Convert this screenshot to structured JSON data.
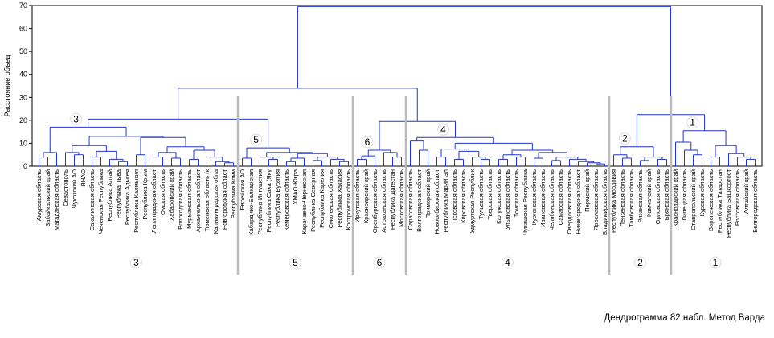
{
  "chart_data": {
    "type": "dendrogram",
    "y_label": "Расстояние объед",
    "caption": "Дендрограмма 82 набл. Метод Варда",
    "color": "#2236c8",
    "ylim": [
      0,
      70
    ],
    "yticks": [
      0,
      10,
      20,
      30,
      40,
      50,
      60,
      70
    ],
    "tree": {
      "height": 69.5,
      "children": [
        {
          "height": 34,
          "children": [
            {
              "height": 20.5,
              "children": [
                {
                  "label": "3",
                  "height": 17,
                  "children": [
                    {
                      "height": 6,
                      "children": [
                        {
                          "height": 4,
                          "children": [
                            "Амурская область",
                            "Забайкальский край"
                          ]
                        },
                        "Магаданская область"
                      ]
                    },
                    {
                      "height": 13,
                      "children": [
                        {
                          "height": 9,
                          "children": [
                            {
                              "height": 6,
                              "children": [
                                "Севастополь",
                                {
                                  "height": 5,
                                  "children": [
                                    "Чукотский АО",
                                    "ЯНАО"
                                  ]
                                }
                              ]
                            },
                            {
                              "height": 6.5,
                              "children": [
                                {
                                  "height": 4,
                                  "children": [
                                    "Сахалинская область",
                                    "Чеченская Республика"
                                  ]
                                },
                                {
                                  "height": 3,
                                  "children": [
                                    "Республика Алтай",
                                    {
                                      "height": 2,
                                      "children": [
                                        "Республика Тыва",
                                        "Республика Адыгея"
                                      ]
                                    }
                                  ]
                                }
                              ]
                            }
                          ]
                        },
                        {
                          "height": 12.5,
                          "children": [
                            {
                              "height": 5,
                              "children": [
                                "Республика Калмыкия",
                                "Республика Крым"
                              ]
                            },
                            {
                              "height": 8.5,
                              "children": [
                                {
                                  "height": 6,
                                  "children": [
                                    {
                                      "height": 4,
                                      "children": [
                                        "Ленинградская област",
                                        "Омская область"
                                      ]
                                    },
                                    {
                                      "height": 3.5,
                                      "children": [
                                        "Хабаровский край",
                                        "Вологодская область"
                                      ]
                                    }
                                  ]
                                },
                                {
                                  "height": 7,
                                  "children": [
                                    {
                                      "height": 3,
                                      "children": [
                                        "Мурманская область",
                                        "Архангельская област"
                                      ]
                                    },
                                    {
                                      "height": 4,
                                      "children": [
                                        "Тюменская область (к",
                                        {
                                          "height": 2,
                                          "children": [
                                            "Калининградская обла",
                                            {
                                              "height": 1.5,
                                              "children": [
                                                "Новгородская област",
                                                "Республика Коми"
                                              ]
                                            }
                                          ]
                                        }
                                      ]
                                    }
                                  ]
                                }
                              ]
                            }
                          ]
                        }
                      ]
                    }
                  ]
                },
                {
                  "label": "5",
                  "height": 8,
                  "children": [
                    {
                      "height": 3.5,
                      "children": [
                        "Еврейская АО",
                        "Кабардино-Балкарская"
                      ]
                    },
                    {
                      "height": 6,
                      "children": [
                        {
                          "height": 4,
                          "children": [
                            "Республика Ингушетия",
                            {
                              "height": 3,
                              "children": [
                                "Республика Саха (Яку",
                                "Республика Бурятия"
                              ]
                            }
                          ]
                        },
                        {
                          "height": 5.5,
                          "children": [
                            {
                              "height": 3.5,
                              "children": [
                                {
                                  "height": 2,
                                  "children": [
                                    "Кемеровская область",
                                    "ХМАО-Югра"
                                  ]
                                },
                                "Карачаево-Черкесская"
                              ]
                            },
                            {
                              "height": 4,
                              "children": [
                                {
                                  "height": 2.5,
                                  "children": [
                                    "Республика Северная",
                                    "Республика Карелия"
                                  ]
                                },
                                {
                                  "height": 3,
                                  "children": [
                                    "Смоленская область",
                                    {
                                      "height": 2,
                                      "children": [
                                        "Республика Хакасия",
                                        "Костромская область"
                                      ]
                                    }
                                  ]
                                }
                              ]
                            }
                          ]
                        }
                      ]
                    }
                  ]
                }
              ]
            },
            {
              "height": 19.5,
              "children": [
                {
                  "label": "6",
                  "height": 7,
                  "children": [
                    {
                      "height": 4.5,
                      "children": [
                        {
                          "height": 3,
                          "children": [
                            "Иркутская область",
                            "Красноярский край"
                          ]
                        },
                        "Оренбургская область"
                      ]
                    },
                    {
                      "height": 6,
                      "children": [
                        "Астраханская область",
                        {
                          "height": 4,
                          "children": [
                            "Республика Дагестан",
                            "Московская область"
                          ]
                        }
                      ]
                    }
                  ]
                },
                {
                  "label": "4",
                  "height": 12.5,
                  "children": [
                    {
                      "height": 11,
                      "children": [
                        "Саратовская область",
                        {
                          "height": 7,
                          "children": [
                            "Волгоградская област",
                            "Приморский край"
                          ]
                        }
                      ]
                    },
                    {
                      "height": 10,
                      "children": [
                        {
                          "height": 7.5,
                          "children": [
                            {
                              "height": 4,
                              "children": [
                                "Новосибирская област",
                                "Республика Марий Эл"
                              ]
                            },
                            {
                              "height": 6.5,
                              "children": [
                                {
                                  "height": 3,
                                  "children": [
                                    "Псковская область",
                                    "Кировская область"
                                  ]
                                },
                                {
                                  "height": 4,
                                  "children": [
                                    "Удмуртская Республик",
                                    {
                                      "height": 3,
                                      "children": [
                                        "Тульская область",
                                        "Тверская область"
                                      ]
                                    }
                                  ]
                                }
                              ]
                            }
                          ]
                        },
                        {
                          "height": 7,
                          "children": [
                            {
                              "height": 5,
                              "children": [
                                {
                                  "height": 3,
                                  "children": [
                                    "Калужская область",
                                    "Ульяновская область"
                                  ]
                                },
                                {
                                  "height": 4,
                                  "children": [
                                    "Томская область",
                                    "Чувашская Республика"
                                  ]
                                }
                              ]
                            },
                            {
                              "height": 6,
                              "children": [
                                {
                                  "height": 3.5,
                                  "children": [
                                    "Курганская область",
                                    "Ивановская область"
                                  ]
                                },
                                {
                                  "height": 4,
                                  "children": [
                                    {
                                      "height": 2.5,
                                      "children": [
                                        "Челябинская область",
                                        "Самарская область"
                                      ]
                                    },
                                    {
                                      "height": 3,
                                      "children": [
                                        "Свердловская область",
                                        {
                                          "height": 2,
                                          "children": [
                                            "Нижегородская област",
                                            {
                                              "height": 1.5,
                                              "children": [
                                                "Пермский край",
                                                {
                                                  "height": 1,
                                                  "children": [
                                                    "Ярославская область",
                                                    "Владимирская область"
                                                  ]
                                                }
                                              ]
                                            }
                                          ]
                                        }
                                      ]
                                    }
                                  ]
                                }
                              ]
                            }
                          ]
                        }
                      ]
                    }
                  ]
                }
              ]
            }
          ]
        },
        {
          "height": 22.5,
          "children": [
            {
              "label": "2",
              "height": 8.5,
              "children": [
                {
                  "height": 5,
                  "children": [
                    "Республика Мордовия",
                    {
                      "height": 3.5,
                      "children": [
                        "Пензенская область",
                        "Тамбовская область"
                      ]
                    }
                  ]
                },
                {
                  "height": 4,
                  "children": [
                    {
                      "height": 2.5,
                      "children": [
                        "Рязанская область",
                        "Камчатский край"
                      ]
                    },
                    {
                      "height": 3,
                      "children": [
                        "Орловская область",
                        "Брянская область"
                      ]
                    }
                  ]
                }
              ]
            },
            {
              "label": "1",
              "height": 15.5,
              "children": [
                {
                  "height": 10.5,
                  "children": [
                    "Краснодарский край",
                    {
                      "height": 7,
                      "children": [
                        "Липецкая область",
                        {
                          "height": 5,
                          "children": [
                            "Ставропольский край",
                            "Курская область"
                          ]
                        }
                      ]
                    }
                  ]
                },
                {
                  "height": 9,
                  "children": [
                    {
                      "height": 4,
                      "children": [
                        "Воронежская область",
                        "Республика Татарстан"
                      ]
                    },
                    {
                      "height": 5.5,
                      "children": [
                        "Республика Башкортост",
                        {
                          "height": 4,
                          "children": [
                            "Ростовская область",
                            {
                              "height": 3,
                              "children": [
                                "Алтайский край",
                                "Белгородская область"
                              ]
                            }
                          ]
                        }
                      ]
                    }
                  ]
                }
              ]
            }
          ]
        }
      ]
    }
  }
}
